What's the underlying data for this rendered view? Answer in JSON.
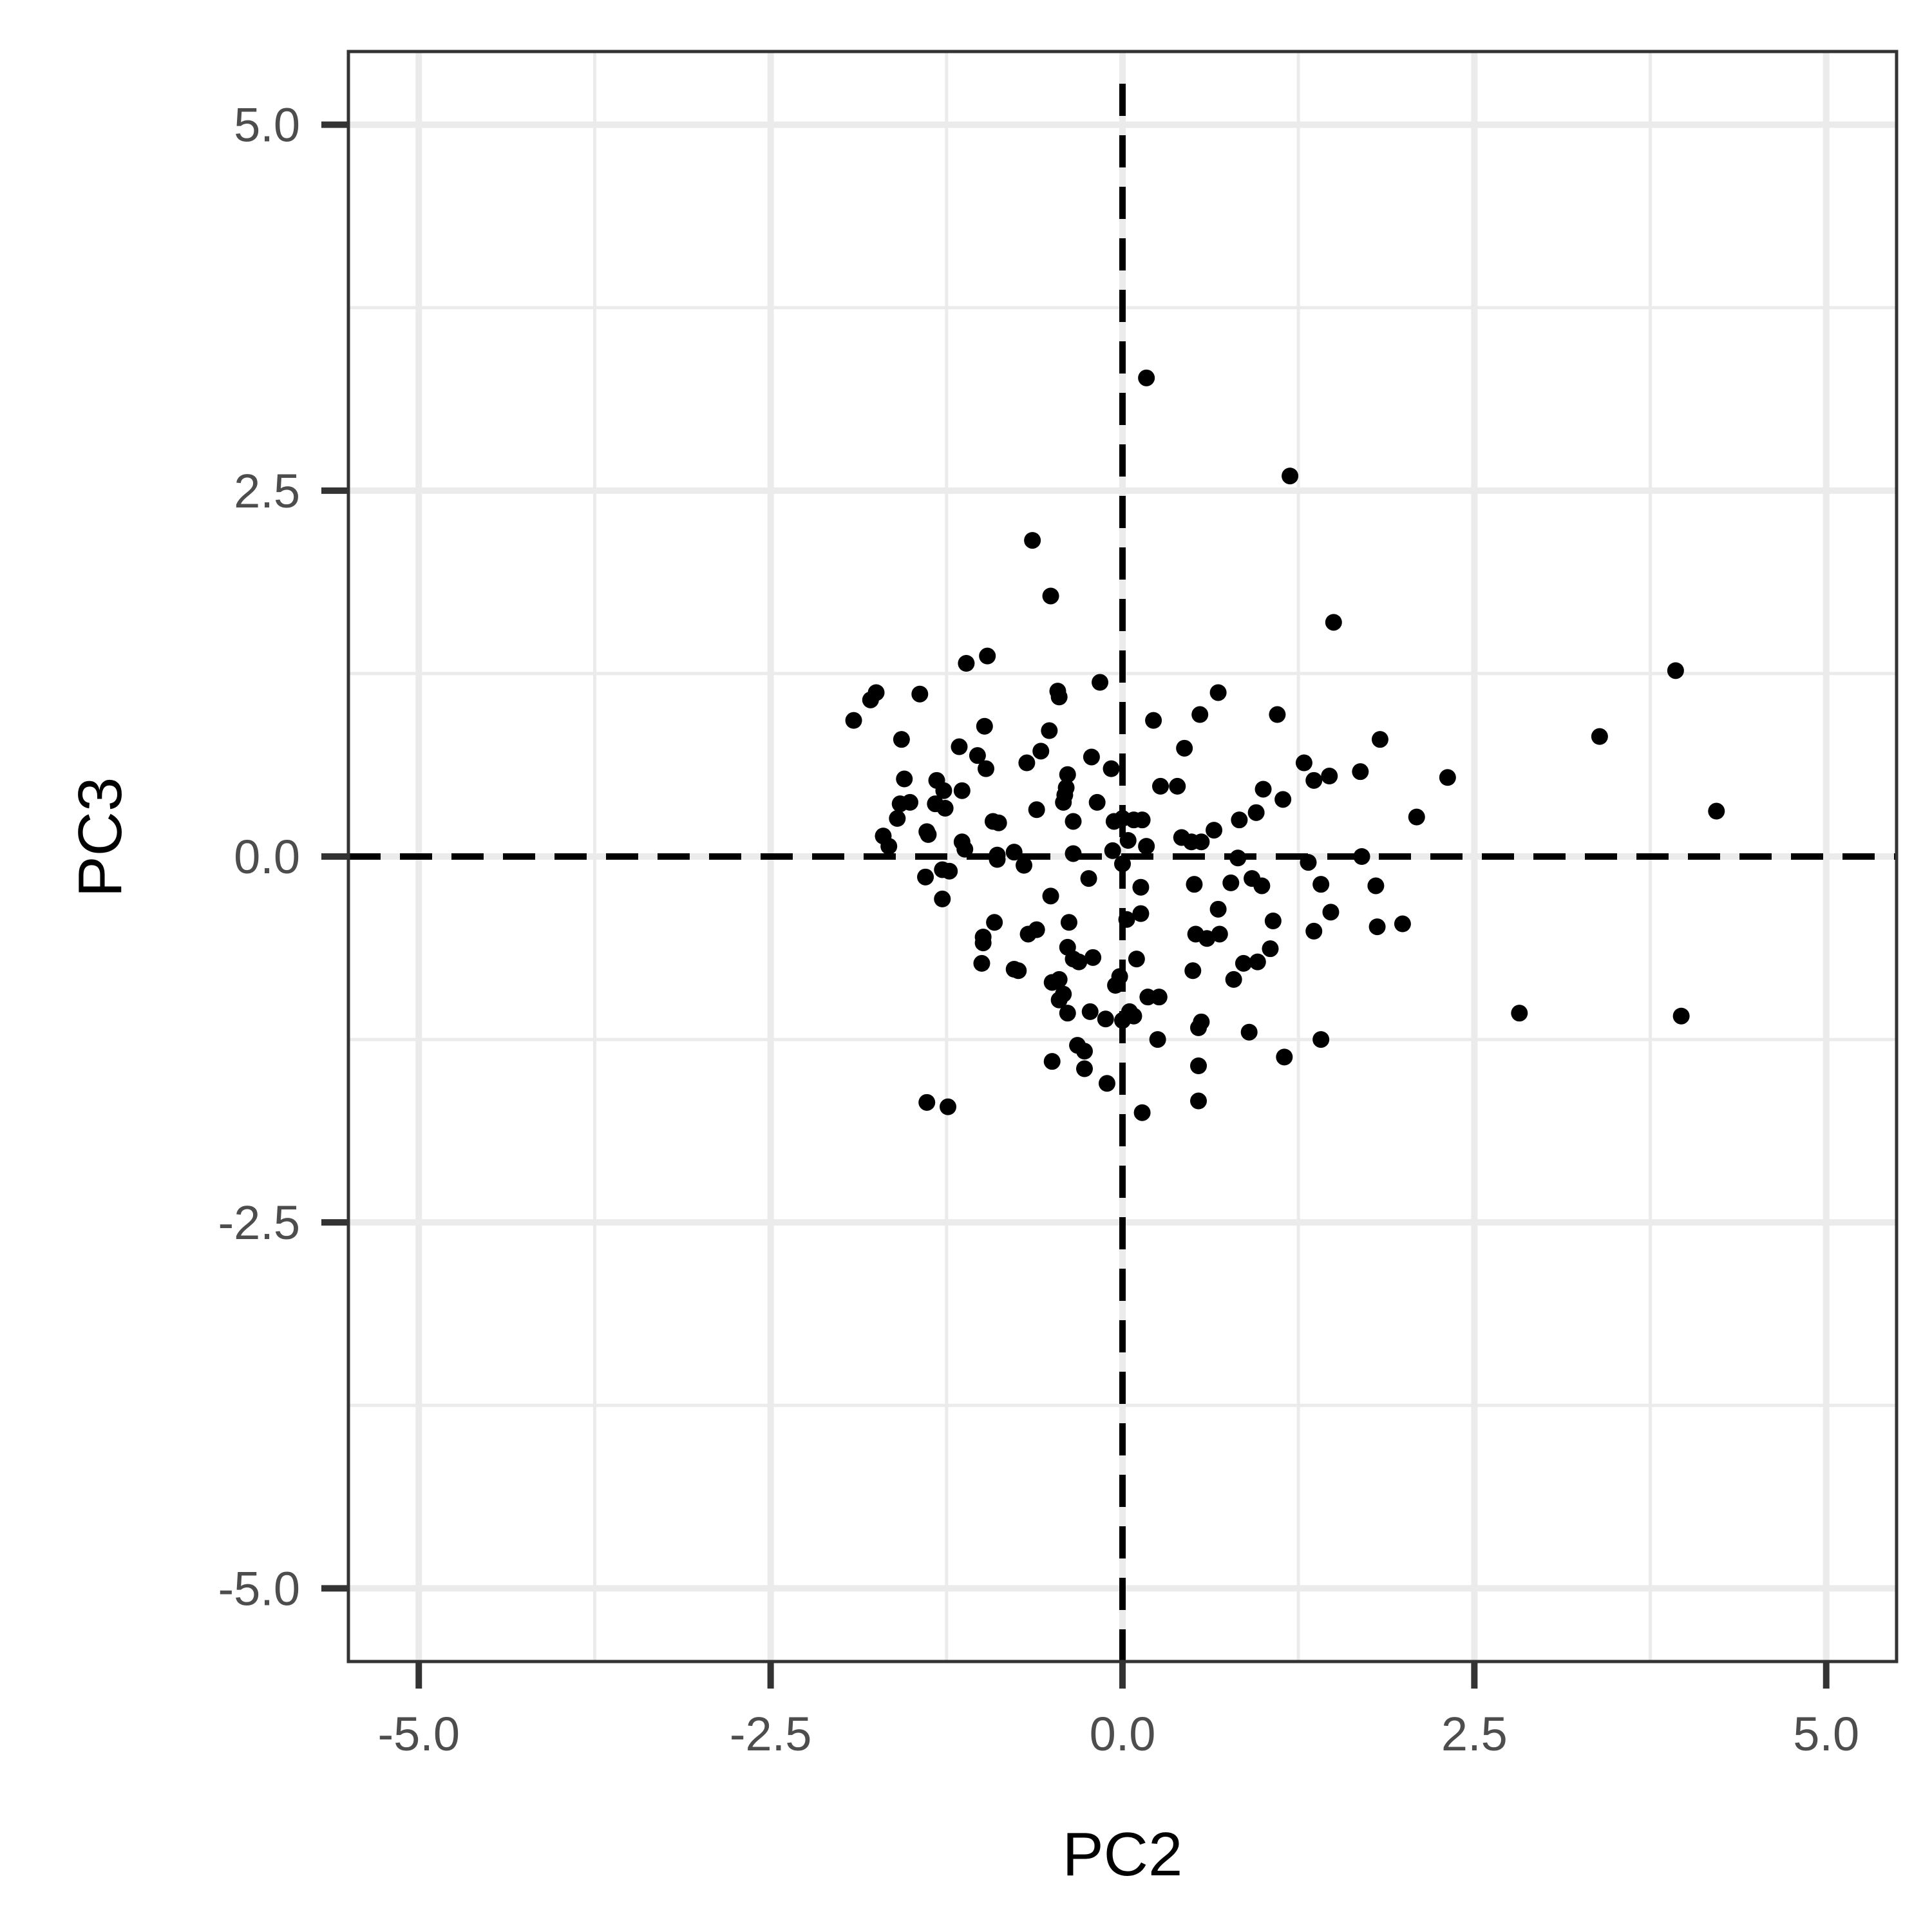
{
  "chart_data": {
    "type": "scatter",
    "title": "",
    "xlabel": "PC2",
    "ylabel": "PC3",
    "xlim": [
      -5.5,
      5.5
    ],
    "ylim": [
      -5.5,
      5.5
    ],
    "xticks": [
      -5.0,
      -2.5,
      0.0,
      2.5,
      5.0
    ],
    "yticks": [
      -5.0,
      -2.5,
      0.0,
      2.5,
      5.0
    ],
    "xtick_labels": [
      "-5.0",
      "-2.5",
      "0.0",
      "2.5",
      "5.0"
    ],
    "ytick_labels": [
      "-5.0",
      "-2.5",
      "0.0",
      "2.5",
      "5.0"
    ],
    "grid": true,
    "reference_lines": {
      "x": 0,
      "y": 0,
      "style": "dashed"
    },
    "point_color": "#000000",
    "grid_color": "#ebebeb",
    "panel_border_color": "#333333",
    "points": [
      [
        0.17,
        3.27
      ],
      [
        1.19,
        2.6
      ],
      [
        -0.64,
        2.16
      ],
      [
        -0.51,
        1.78
      ],
      [
        1.5,
        1.6
      ],
      [
        -1.11,
        1.32
      ],
      [
        -0.96,
        1.37
      ],
      [
        3.93,
        1.27
      ],
      [
        -0.16,
        1.19
      ],
      [
        -0.46,
        1.13
      ],
      [
        -0.45,
        1.09
      ],
      [
        0.68,
        1.12
      ],
      [
        -1.75,
        1.12
      ],
      [
        -1.79,
        1.07
      ],
      [
        -1.44,
        1.11
      ],
      [
        -1.91,
        0.93
      ],
      [
        1.1,
        0.97
      ],
      [
        0.55,
        0.97
      ],
      [
        0.22,
        0.93
      ],
      [
        -0.98,
        0.89
      ],
      [
        -0.52,
        0.86
      ],
      [
        3.39,
        0.82
      ],
      [
        1.83,
        0.8
      ],
      [
        -1.57,
        0.8
      ],
      [
        -1.16,
        0.75
      ],
      [
        -1.03,
        0.69
      ],
      [
        -0.58,
        0.72
      ],
      [
        -0.22,
        0.68
      ],
      [
        0.44,
        0.74
      ],
      [
        -0.68,
        0.64
      ],
      [
        -0.97,
        0.6
      ],
      [
        1.29,
        0.64
      ],
      [
        1.69,
        0.58
      ],
      [
        -0.08,
        0.6
      ],
      [
        1.47,
        0.55
      ],
      [
        -0.39,
        0.56
      ],
      [
        2.31,
        0.54
      ],
      [
        1.36,
        0.52
      ],
      [
        -1.32,
        0.52
      ],
      [
        -1.55,
        0.53
      ],
      [
        0.27,
        0.48
      ],
      [
        0.39,
        0.48
      ],
      [
        1.0,
        0.46
      ],
      [
        -0.4,
        0.47
      ],
      [
        -1.27,
        0.45
      ],
      [
        -1.14,
        0.45
      ],
      [
        -0.41,
        0.42
      ],
      [
        1.14,
        0.39
      ],
      [
        -0.42,
        0.37
      ],
      [
        -0.18,
        0.37
      ],
      [
        -1.51,
        0.37
      ],
      [
        -1.58,
        0.36
      ],
      [
        -1.33,
        0.36
      ],
      [
        -1.26,
        0.33
      ],
      [
        -0.61,
        0.32
      ],
      [
        0.95,
        0.3
      ],
      [
        4.22,
        0.31
      ],
      [
        2.09,
        0.27
      ],
      [
        -1.6,
        0.26
      ],
      [
        0.0,
        0.26
      ],
      [
        0.08,
        0.25
      ],
      [
        0.14,
        0.25
      ],
      [
        -0.06,
        0.24
      ],
      [
        -0.92,
        0.24
      ],
      [
        -0.88,
        0.23
      ],
      [
        -0.35,
        0.24
      ],
      [
        0.83,
        0.25
      ],
      [
        0.65,
        0.18
      ],
      [
        -1.39,
        0.17
      ],
      [
        -1.38,
        0.15
      ],
      [
        -1.7,
        0.14
      ],
      [
        0.42,
        0.13
      ],
      [
        0.49,
        0.1
      ],
      [
        0.56,
        0.1
      ],
      [
        0.04,
        0.11
      ],
      [
        -1.14,
        0.1
      ],
      [
        -1.12,
        0.05
      ],
      [
        -1.66,
        0.07
      ],
      [
        0.17,
        0.07
      ],
      [
        -0.07,
        0.04
      ],
      [
        -0.77,
        0.03
      ],
      [
        -0.89,
        0.01
      ],
      [
        -0.35,
        0.02
      ],
      [
        1.7,
        0.0
      ],
      [
        0.82,
        -0.01
      ],
      [
        1.32,
        -0.04
      ],
      [
        -0.89,
        -0.02
      ],
      [
        -0.7,
        -0.06
      ],
      [
        0.0,
        -0.05
      ],
      [
        -1.23,
        -0.1
      ],
      [
        -1.28,
        -0.09
      ],
      [
        0.92,
        -0.15
      ],
      [
        -0.24,
        -0.15
      ],
      [
        1.41,
        -0.19
      ],
      [
        0.77,
        -0.18
      ],
      [
        0.51,
        -0.19
      ],
      [
        -1.4,
        -0.14
      ],
      [
        1.8,
        -0.2
      ],
      [
        0.99,
        -0.2
      ],
      [
        0.13,
        -0.21
      ],
      [
        -0.51,
        -0.27
      ],
      [
        -1.28,
        -0.29
      ],
      [
        1.48,
        -0.38
      ],
      [
        0.13,
        -0.39
      ],
      [
        0.03,
        -0.43
      ],
      [
        -0.38,
        -0.45
      ],
      [
        1.07,
        -0.44
      ],
      [
        -0.91,
        -0.45
      ],
      [
        1.99,
        -0.46
      ],
      [
        1.81,
        -0.48
      ],
      [
        -0.61,
        -0.5
      ],
      [
        0.69,
        -0.53
      ],
      [
        0.52,
        -0.53
      ],
      [
        -0.67,
        -0.53
      ],
      [
        1.36,
        -0.51
      ],
      [
        -0.99,
        -0.55
      ],
      [
        -0.99,
        -0.59
      ],
      [
        0.6,
        -0.56
      ],
      [
        0.68,
        -0.36
      ],
      [
        -0.39,
        -0.62
      ],
      [
        1.05,
        -0.63
      ],
      [
        -0.21,
        -0.69
      ],
      [
        0.1,
        -0.7
      ],
      [
        -0.35,
        -0.7
      ],
      [
        -0.31,
        -0.72
      ],
      [
        -1.0,
        -0.73
      ],
      [
        0.86,
        -0.73
      ],
      [
        0.96,
        -0.72
      ],
      [
        -0.77,
        -0.77
      ],
      [
        -0.74,
        -0.78
      ],
      [
        0.5,
        -0.78
      ],
      [
        0.79,
        -0.84
      ],
      [
        -0.45,
        -0.84
      ],
      [
        -0.5,
        -0.86
      ],
      [
        -0.02,
        -0.82
      ],
      [
        -0.05,
        -0.88
      ],
      [
        -0.42,
        -0.94
      ],
      [
        -0.45,
        -0.98
      ],
      [
        0.18,
        -0.96
      ],
      [
        0.26,
        -0.96
      ],
      [
        -0.39,
        -1.07
      ],
      [
        -0.23,
        -1.06
      ],
      [
        0.05,
        -1.06
      ],
      [
        -0.12,
        -1.11
      ],
      [
        0.0,
        -1.12
      ],
      [
        0.08,
        -1.09
      ],
      [
        0.56,
        -1.13
      ],
      [
        0.54,
        -1.17
      ],
      [
        0.9,
        -1.2
      ],
      [
        2.82,
        -1.07
      ],
      [
        3.97,
        -1.09
      ],
      [
        1.41,
        -1.25
      ],
      [
        0.25,
        -1.25
      ],
      [
        -0.32,
        -1.29
      ],
      [
        -0.27,
        -1.33
      ],
      [
        -0.5,
        -1.4
      ],
      [
        1.15,
        -1.37
      ],
      [
        -0.27,
        -1.45
      ],
      [
        0.54,
        -1.43
      ],
      [
        -0.11,
        -1.55
      ],
      [
        -1.39,
        -1.68
      ],
      [
        -1.24,
        -1.71
      ],
      [
        0.54,
        -1.67
      ],
      [
        0.14,
        -1.75
      ]
    ]
  }
}
